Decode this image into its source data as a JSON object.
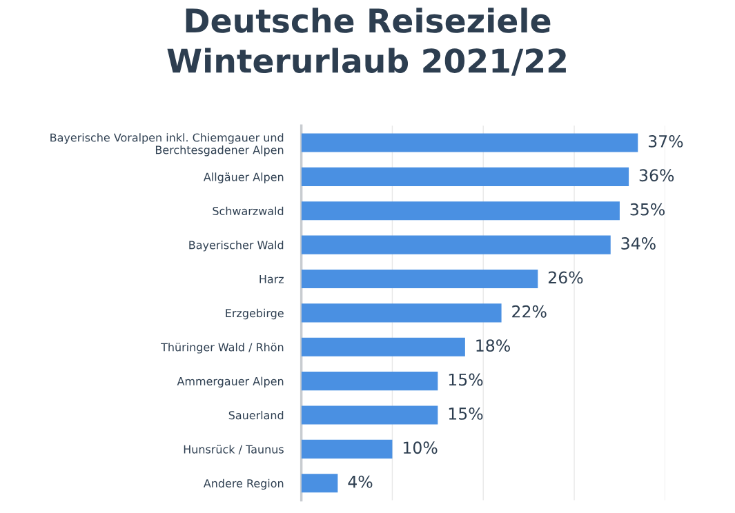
{
  "chart_data": {
    "type": "bar",
    "orientation": "horizontal",
    "title": "Deutsche Reiseziele\nWinterurlaub 2021/22",
    "categories": [
      "Bayerische Voralpen inkl. Chiemgauer und\nBerchtesgadener Alpen",
      "Allgäuer Alpen",
      "Schwarzwald",
      "Bayerischer Wald",
      "Harz",
      "Erzgebirge",
      "Thüringer Wald / Rhön",
      "Ammergauer Alpen",
      "Sauerland",
      "Hunsrück / Taunus",
      "Andere Region"
    ],
    "values": [
      37,
      36,
      35,
      34,
      26,
      22,
      18,
      15,
      15,
      10,
      4
    ],
    "value_labels": [
      "37%",
      "36%",
      "35%",
      "34%",
      "26%",
      "22%",
      "18%",
      "15%",
      "15%",
      "10%",
      "4%"
    ],
    "color": "#4a90e2",
    "xlim": [
      0,
      40
    ],
    "xticks": [
      {
        "value": 10,
        "label": null
      },
      {
        "value": 20,
        "label": null
      },
      {
        "value": 30,
        "label": null
      },
      {
        "value": 40,
        "label": null
      }
    ],
    "grid": "x",
    "tick_labels": "y",
    "legend": false
  }
}
